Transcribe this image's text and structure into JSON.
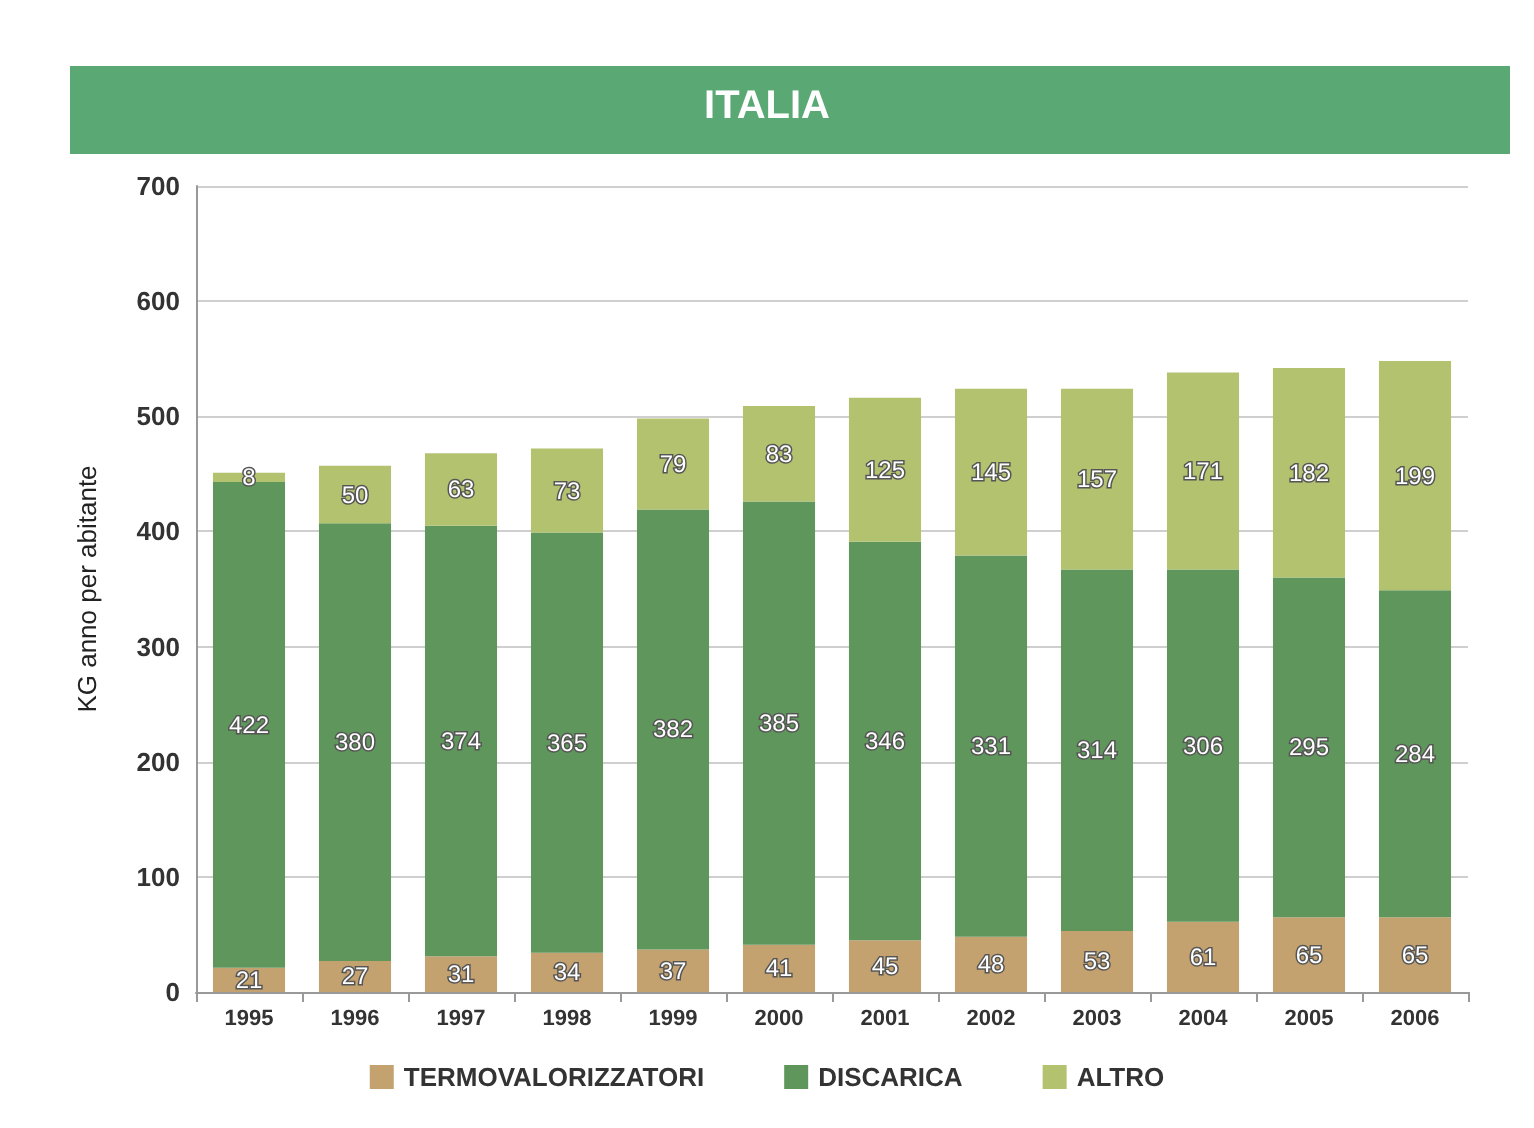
{
  "chart_data": {
    "type": "bar",
    "title": "ITALIA",
    "ylabel": "KG anno per abitante",
    "stacked": true,
    "data_labels": true,
    "grid": "y",
    "legend": "bottom",
    "categories": [
      "1995",
      "1996",
      "1997",
      "1998",
      "1999",
      "2000",
      "2001",
      "2002",
      "2003",
      "2004",
      "2005",
      "2006"
    ],
    "ylim": [
      0,
      700
    ],
    "yticks": [
      0,
      100,
      200,
      300,
      400,
      500,
      600,
      700
    ],
    "series": [
      {
        "name": "TERMOVALORIZZATORI",
        "color": "#c4a270",
        "values": [
          21,
          27,
          31,
          34,
          37,
          41,
          45,
          48,
          53,
          61,
          65,
          65
        ]
      },
      {
        "name": "DISCARICA",
        "color": "#5f965c",
        "values": [
          422,
          380,
          374,
          365,
          382,
          385,
          346,
          331,
          314,
          306,
          295,
          284
        ]
      },
      {
        "name": "ALTRO",
        "color": "#b3c26f",
        "values": [
          8,
          50,
          63,
          73,
          79,
          83,
          125,
          145,
          157,
          171,
          182,
          199
        ]
      }
    ]
  }
}
